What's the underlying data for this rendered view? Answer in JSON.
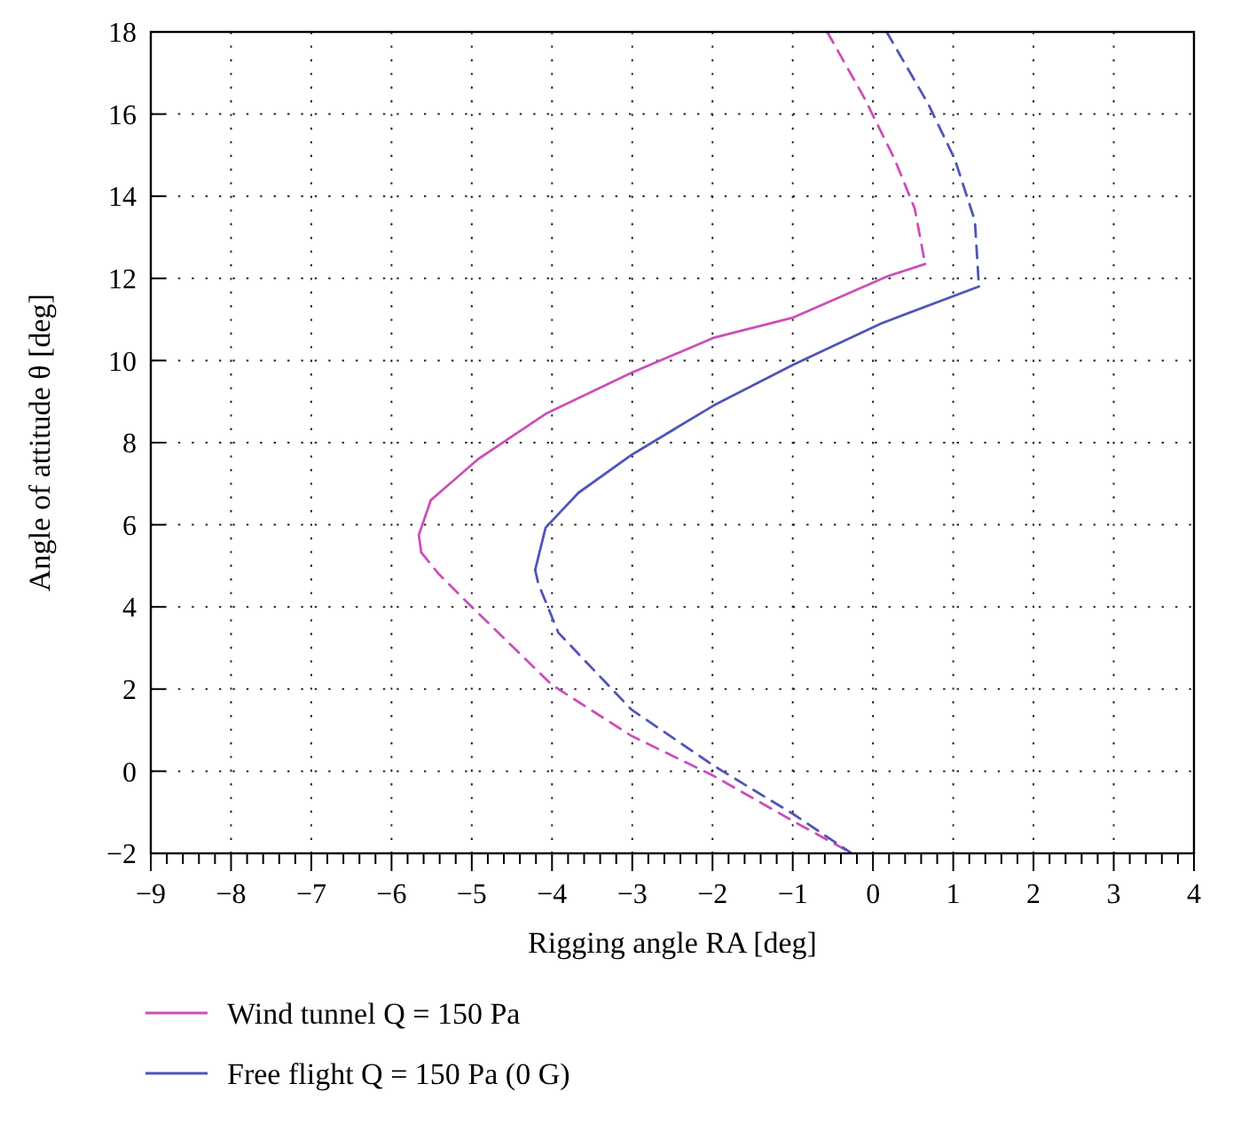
{
  "chart_data": {
    "type": "line",
    "xlabel": "Rigging angle RA [deg]",
    "ylabel": "Angle of attitude θ [deg]",
    "xlim": [
      -9,
      4
    ],
    "ylim": [
      -2,
      18
    ],
    "xticks": [
      -9,
      {
        "value": -8.8,
        "label": null
      },
      {
        "value": -8.6,
        "label": null
      },
      {
        "value": -8.4,
        "label": null
      },
      {
        "value": -8.2,
        "label": null
      },
      -8,
      {
        "value": -7.8,
        "label": null
      },
      {
        "value": -7.6,
        "label": null
      },
      {
        "value": -7.4,
        "label": null
      },
      {
        "value": -7.2,
        "label": null
      },
      -7,
      {
        "value": -6.8,
        "label": null
      },
      {
        "value": -6.6,
        "label": null
      },
      {
        "value": -6.4,
        "label": null
      },
      {
        "value": -6.2,
        "label": null
      },
      -6,
      {
        "value": -5.8,
        "label": null
      },
      {
        "value": -5.6,
        "label": null
      },
      {
        "value": -5.4,
        "label": null
      },
      {
        "value": -5.2,
        "label": null
      },
      -5,
      {
        "value": -4.8,
        "label": null
      },
      {
        "value": -4.6,
        "label": null
      },
      {
        "value": -4.4,
        "label": null
      },
      {
        "value": -4.2,
        "label": null
      },
      -4,
      {
        "value": -3.8,
        "label": null
      },
      {
        "value": -3.6,
        "label": null
      },
      {
        "value": -3.4,
        "label": null
      },
      {
        "value": -3.2,
        "label": null
      },
      -3,
      {
        "value": -2.8,
        "label": null
      },
      {
        "value": -2.6,
        "label": null
      },
      {
        "value": -2.4,
        "label": null
      },
      {
        "value": -2.2,
        "label": null
      },
      -2,
      {
        "value": -1.8,
        "label": null
      },
      {
        "value": -1.6,
        "label": null
      },
      {
        "value": -1.4,
        "label": null
      },
      {
        "value": -1.2,
        "label": null
      },
      -1,
      {
        "value": -0.8,
        "label": null
      },
      {
        "value": -0.6,
        "label": null
      },
      {
        "value": -0.4,
        "label": null
      },
      {
        "value": -0.2,
        "label": null
      },
      0,
      {
        "value": 0.2,
        "label": null
      },
      {
        "value": 0.4,
        "label": null
      },
      {
        "value": 0.6,
        "label": null
      },
      {
        "value": 0.8,
        "label": null
      },
      1,
      {
        "value": 1.2,
        "label": null
      },
      {
        "value": 1.4,
        "label": null
      },
      {
        "value": 1.6,
        "label": null
      },
      {
        "value": 1.8,
        "label": null
      },
      2,
      {
        "value": 2.2,
        "label": null
      },
      {
        "value": 2.4,
        "label": null
      },
      {
        "value": 2.6,
        "label": null
      },
      {
        "value": 2.8,
        "label": null
      },
      3,
      {
        "value": 3.2,
        "label": null
      },
      {
        "value": 3.4,
        "label": null
      },
      {
        "value": 3.6,
        "label": null
      },
      {
        "value": 3.8,
        "label": null
      },
      4
    ],
    "yticks": [
      -2,
      0,
      2,
      4,
      6,
      8,
      10,
      12,
      14,
      16,
      18
    ],
    "grid": true,
    "legend": "bottom",
    "series": [
      {
        "name": "Wind tunnel Q = 150 Pa",
        "color": "#cc4fb8",
        "line_style": "solid",
        "x": [
          0.65,
          0.18,
          -0.99,
          -1.99,
          -3.01,
          -4.08,
          -4.92,
          -5.51,
          -5.66,
          -5.63
        ],
        "values": [
          12.35,
          12.05,
          11.05,
          10.55,
          9.7,
          8.7,
          7.6,
          6.6,
          5.75,
          5.33
        ]
      },
      {
        "name": "Free flight Q = 150 Pa (0 G)",
        "color": "#4f55b8",
        "line_style": "solid",
        "x": [
          1.32,
          0.1,
          -0.99,
          -1.99,
          -3.01,
          -3.67,
          -4.08,
          -4.21
        ],
        "values": [
          11.8,
          10.9,
          9.9,
          8.9,
          7.7,
          6.78,
          5.93,
          4.9
        ]
      },
      {
        "color": "#cc4fb8",
        "line_style": "dashed",
        "x": [
          -0.57,
          -0.11,
          0.27,
          0.52,
          0.65,
          null,
          -5.63,
          -5.42,
          -5.0,
          -4.0,
          -3.01,
          -1.99,
          -0.99,
          -0.28
        ],
        "values": [
          18,
          16.4,
          14.9,
          13.7,
          12.35,
          null,
          5.33,
          4.82,
          4.0,
          2.1,
          0.86,
          -0.11,
          -1.22,
          -1.98
        ]
      },
      {
        "color": "#4f55b8",
        "line_style": "dashed",
        "x": [
          0.17,
          0.69,
          1.02,
          1.27,
          1.32,
          null,
          -4.21,
          -4.17,
          -3.92,
          -3.01,
          -1.99,
          -0.99,
          -0.28
        ],
        "values": [
          18,
          16.24,
          14.9,
          13.4,
          11.8,
          null,
          4.9,
          4.56,
          3.37,
          1.5,
          0.14,
          -1.05,
          -1.98
        ]
      }
    ]
  }
}
